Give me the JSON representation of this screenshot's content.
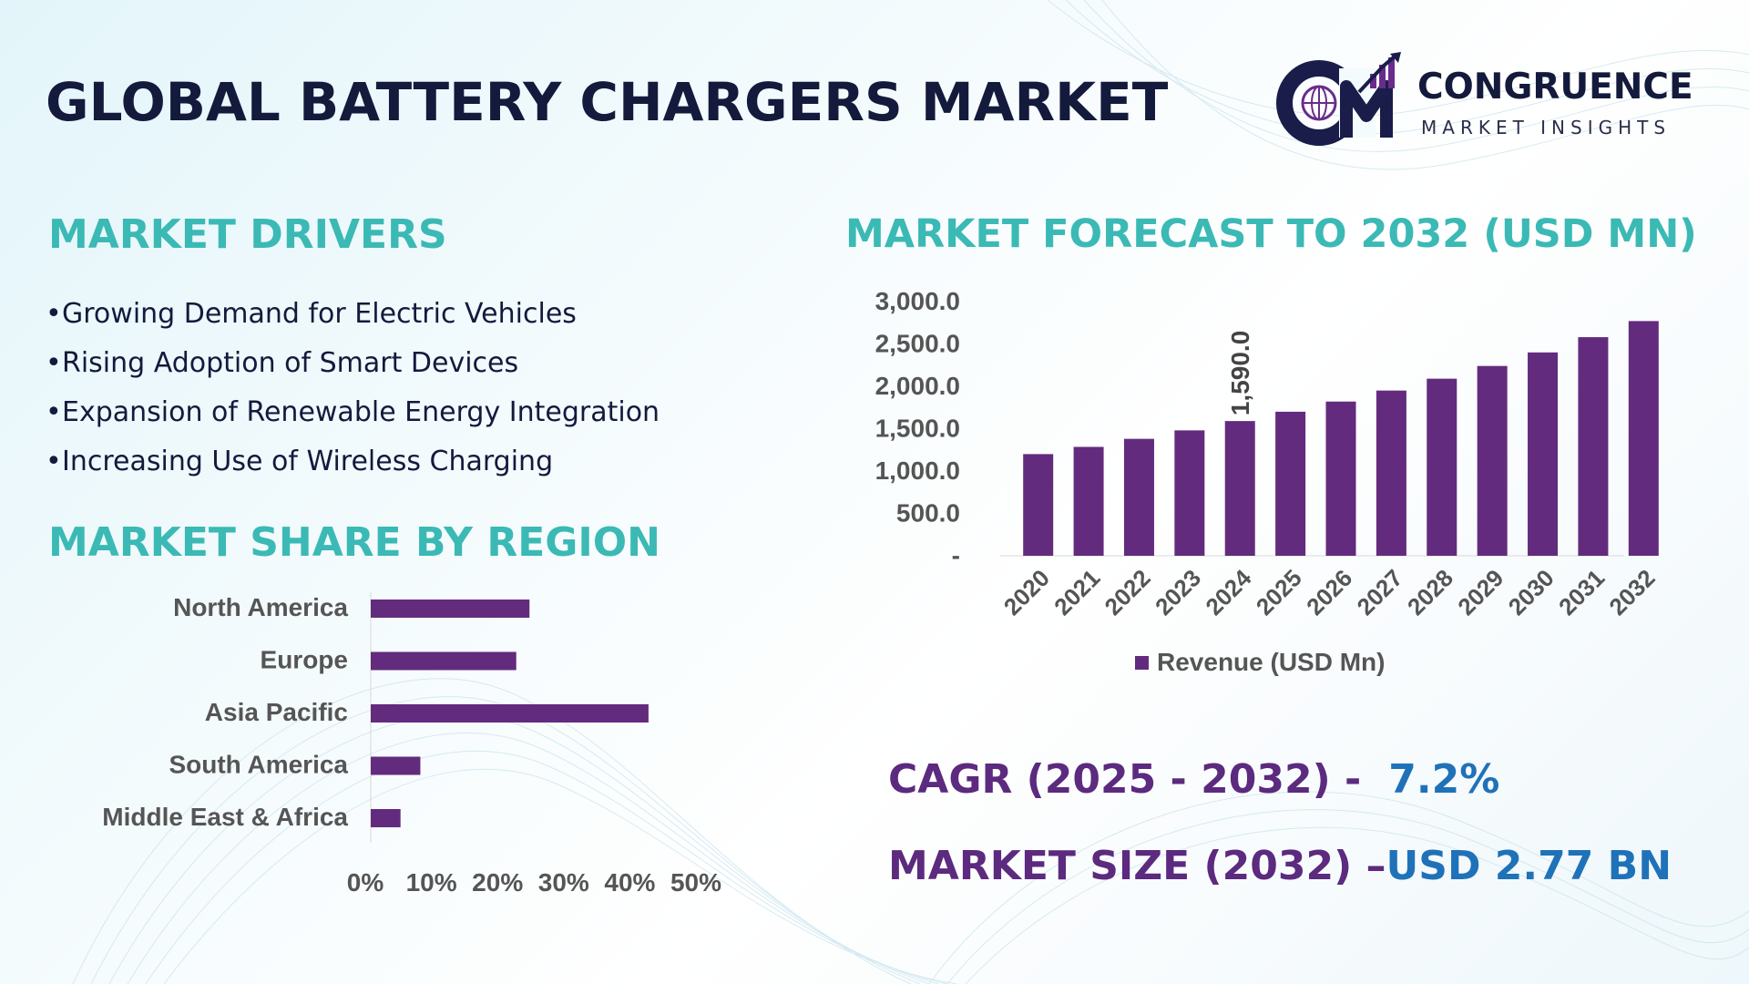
{
  "title": "GLOBAL BATTERY CHARGERS MARKET",
  "logo": {
    "name": "CONGRUENCE",
    "subtitle": "MARKET INSIGHTS",
    "monogram": "CM",
    "colors": {
      "primary": "#1a1d4a",
      "accent": "#6a2c8c"
    }
  },
  "drivers": {
    "heading": "MARKET DRIVERS",
    "bullet": "•",
    "items": [
      "Growing Demand for Electric Vehicles",
      "Rising Adoption of Smart Devices",
      "Expansion of Renewable Energy Integration",
      "Increasing Use of Wireless Charging"
    ]
  },
  "region": {
    "heading": "MARKET SHARE BY REGION"
  },
  "forecast": {
    "heading": "MARKET FORECAST TO 2032 (USD MN)"
  },
  "stats": {
    "cagr_label": "CAGR (2025 - 2032) -",
    "cagr_value": "7.2%",
    "size_label": "MARKET SIZE (2032) –",
    "size_value": "USD 2.77 BN"
  },
  "colors": {
    "title": "#141a3c",
    "heading": "#3bb9b5",
    "bar": "#632b7e",
    "stat_label": "#5c2a7e",
    "stat_value": "#1f72b8",
    "axis_text": "#555555"
  },
  "chart_data": [
    {
      "type": "bar",
      "orientation": "horizontal",
      "categories": [
        "North America",
        "Europe",
        "Asia Pacific",
        "South America",
        "Middle East & Africa"
      ],
      "values": [
        24,
        22,
        42,
        7.5,
        4.5
      ],
      "xlim": [
        0,
        50
      ],
      "x_ticks": [
        "0%",
        "10%",
        "20%",
        "30%",
        "40%",
        "50%"
      ],
      "grid": false
    },
    {
      "type": "bar",
      "categories": [
        "2020",
        "2021",
        "2022",
        "2023",
        "2024",
        "2025",
        "2026",
        "2027",
        "2028",
        "2029",
        "2030",
        "2031",
        "2032"
      ],
      "series": [
        {
          "name": "Revenue (USD Mn)",
          "values": [
            1200,
            1285,
            1380,
            1480,
            1590,
            1700,
            1820,
            1950,
            2090,
            2240,
            2400,
            2580,
            2770
          ]
        }
      ],
      "data_labels": [
        {
          "index": 4,
          "text": "1,590.0"
        }
      ],
      "ylim": [
        0,
        3000
      ],
      "y_ticks": [
        "-",
        "500.0",
        "1,000.0",
        "1,500.0",
        "2,000.0",
        "2,500.0",
        "3,000.0"
      ],
      "legend": "bottom",
      "grid": false
    }
  ]
}
